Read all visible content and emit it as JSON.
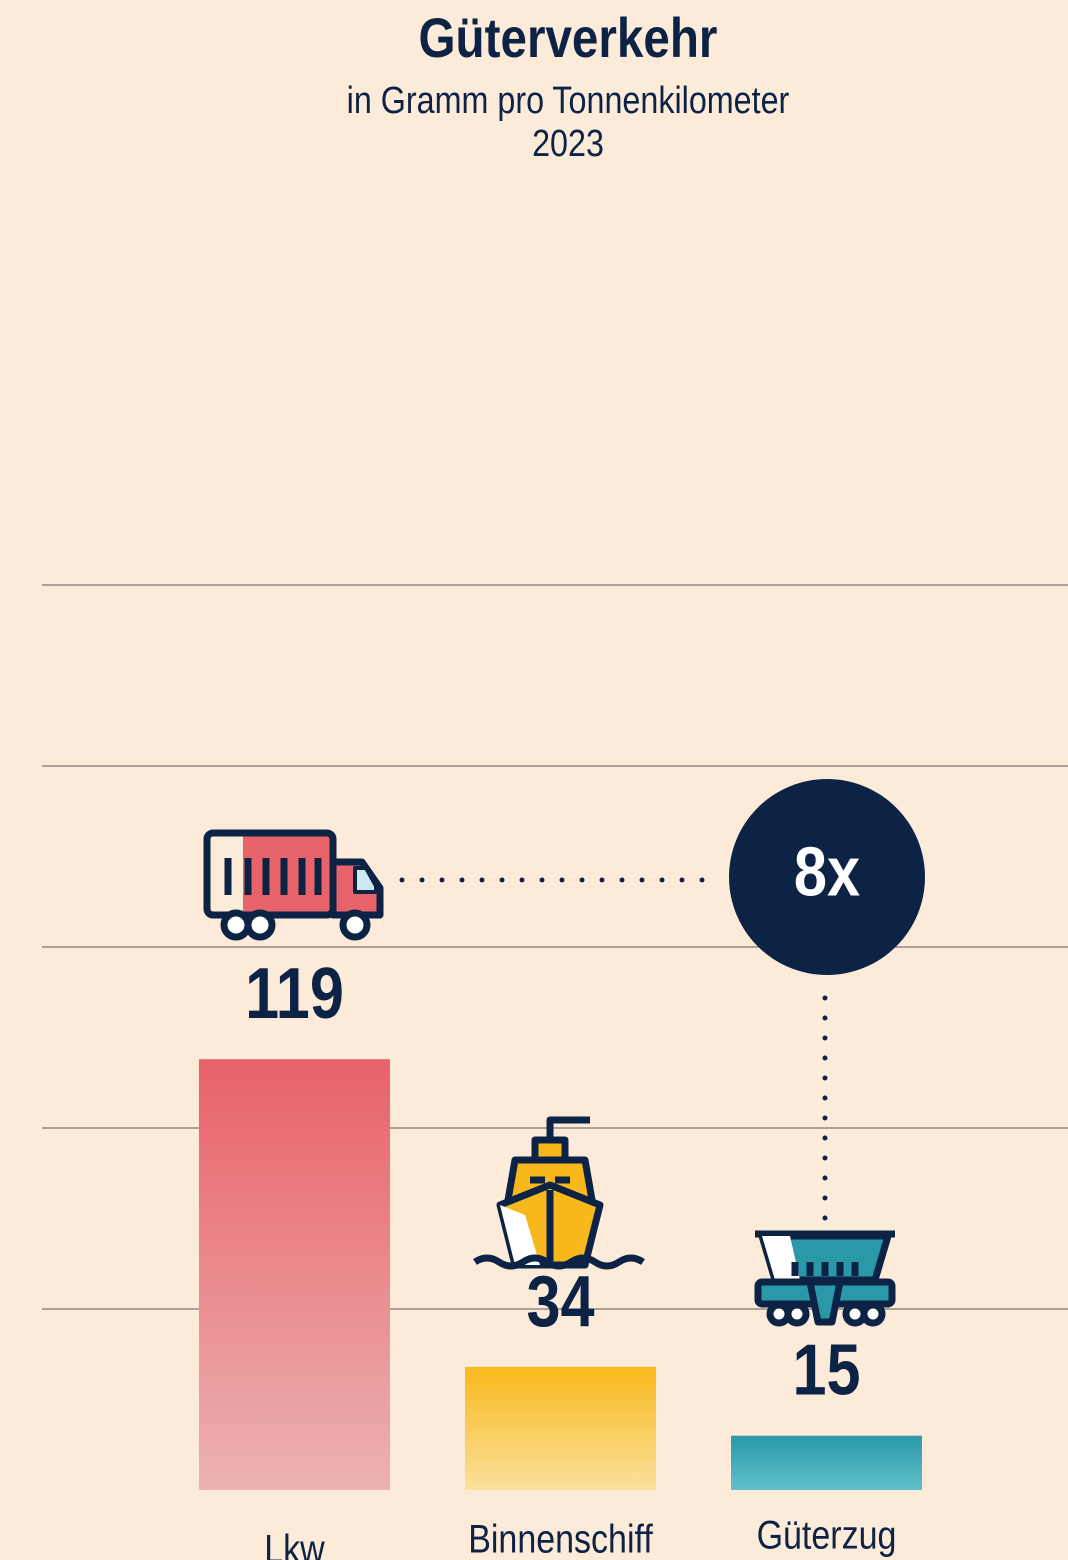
{
  "chart_data": {
    "type": "bar",
    "title": "Güterverkehr",
    "subtitle": "in Gramm pro Tonnenkilometer",
    "year": "2023",
    "categories": [
      "Lkw",
      "Binnenschiff",
      "Güterzug"
    ],
    "values": [
      119,
      34,
      15
    ],
    "colors": [
      [
        "#e9626a",
        "#ebb2b0"
      ],
      [
        "#f8b81c",
        "#fbe19c"
      ],
      [
        "#2a99a7",
        "#5fbfca"
      ]
    ],
    "ylim": [
      0,
      250
    ],
    "yticks": [
      50,
      100,
      150,
      200,
      250
    ],
    "grid": true,
    "annotation": "8x"
  }
}
